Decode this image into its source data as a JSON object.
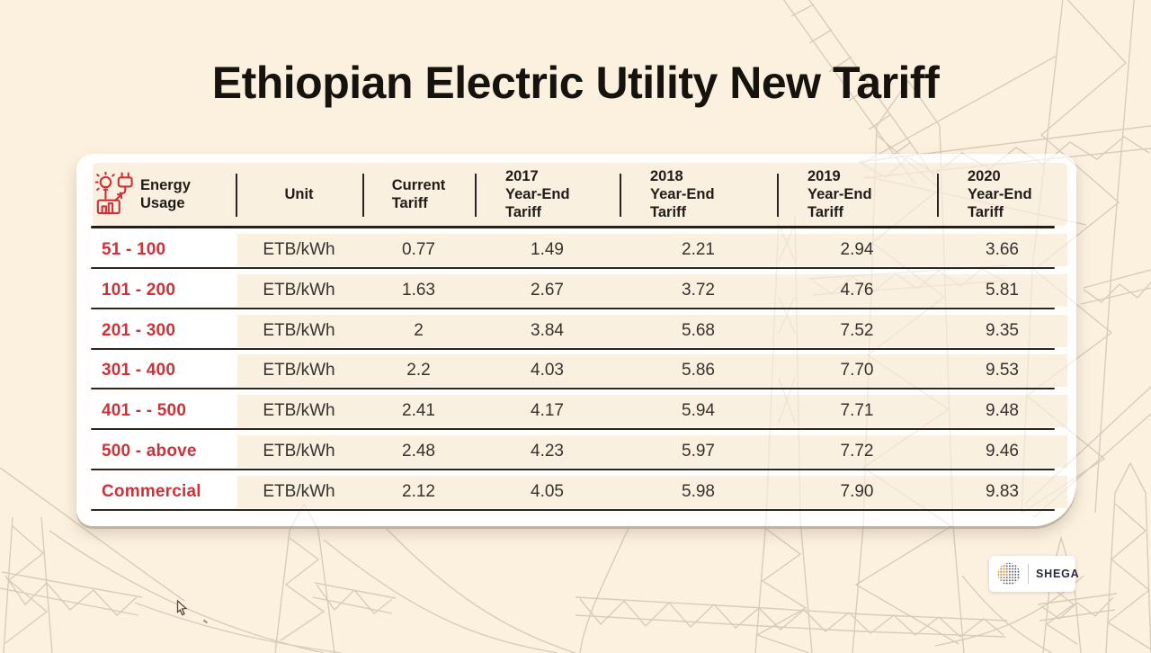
{
  "title": "Ethiopian Electric Utility New Tariff",
  "logo": {
    "text": "SHEGA"
  },
  "icons": {
    "header": "energy-usage-icon (bulb, plug and bar-chart, red outline)",
    "logo_mark": "shega-dotted-globe-icon",
    "background": "power-transmission-towers-line-art",
    "cursor": "mouse-arrow-pointer"
  },
  "colors": {
    "background": "#fcf1df",
    "card": "#ffffff",
    "row_cream": "#faefde",
    "accent_red": "#ce3137",
    "text_dark": "#36322e",
    "line_dark": "#27211c",
    "tower_line": "#d7cab7",
    "logo_navy": "#272b3f",
    "logo_gold": "#e2a43c"
  },
  "table": {
    "columns": [
      {
        "l1": "Energy",
        "l2": "Usage"
      },
      {
        "l1": "Unit"
      },
      {
        "l1": "Current",
        "l2": "Tariff"
      },
      {
        "l1": "2017",
        "l2": "Year-End",
        "l3": "Tariff"
      },
      {
        "l1": "2018",
        "l2": "Year-End",
        "l3": "Tariff"
      },
      {
        "l1": "2019",
        "l2": "Year-End",
        "l3": "Tariff"
      },
      {
        "l1": "2020",
        "l2": "Year-End",
        "l3": "Tariff"
      }
    ],
    "rows": [
      {
        "usage": "51 - 100",
        "values": [
          "ETB/kWh",
          "0.77",
          "1.49",
          "2.21",
          "2.94",
          "3.66"
        ]
      },
      {
        "usage": "101 - 200",
        "values": [
          "ETB/kWh",
          "1.63",
          "2.67",
          "3.72",
          "4.76",
          "5.81"
        ]
      },
      {
        "usage": "201 - 300",
        "values": [
          "ETB/kWh",
          "2",
          "3.84",
          "5.68",
          "7.52",
          "9.35"
        ]
      },
      {
        "usage": "301 - 400",
        "values": [
          "ETB/kWh",
          "2.2",
          "4.03",
          "5.86",
          "7.70",
          "9.53"
        ]
      },
      {
        "usage": "401 - - 500",
        "values": [
          "ETB/kWh",
          "2.41",
          "4.17",
          "5.94",
          "7.71",
          "9.48"
        ]
      },
      {
        "usage": "500 - above",
        "values": [
          "ETB/kWh",
          "2.48",
          "4.23",
          "5.97",
          "7.72",
          "9.46"
        ]
      },
      {
        "usage": "Commercial",
        "values": [
          "ETB/kWh",
          "2.12",
          "4.05",
          "5.98",
          "7.90",
          "9.83"
        ]
      }
    ]
  },
  "chart_data": {
    "type": "table",
    "title": "Ethiopian Electric Utility New Tariff",
    "columns": [
      "Energy Usage",
      "Unit",
      "Current Tariff",
      "2017 Year-End Tariff",
      "2018 Year-End Tariff",
      "2019 Year-End Tariff",
      "2020 Year-End Tariff"
    ],
    "rows": [
      [
        "51 - 100",
        "ETB/kWh",
        0.77,
        1.49,
        2.21,
        2.94,
        3.66
      ],
      [
        "101 - 200",
        "ETB/kWh",
        1.63,
        2.67,
        3.72,
        4.76,
        5.81
      ],
      [
        "201 - 300",
        "ETB/kWh",
        2.0,
        3.84,
        5.68,
        7.52,
        9.35
      ],
      [
        "301 - 400",
        "ETB/kWh",
        2.2,
        4.03,
        5.86,
        7.7,
        9.53
      ],
      [
        "401 - - 500",
        "ETB/kWh",
        2.41,
        4.17,
        5.94,
        7.71,
        9.48
      ],
      [
        "500 - above",
        "ETB/kWh",
        2.48,
        4.23,
        5.97,
        7.72,
        9.46
      ],
      [
        "Commercial",
        "ETB/kWh",
        2.12,
        4.05,
        5.98,
        7.9,
        9.83
      ]
    ]
  }
}
